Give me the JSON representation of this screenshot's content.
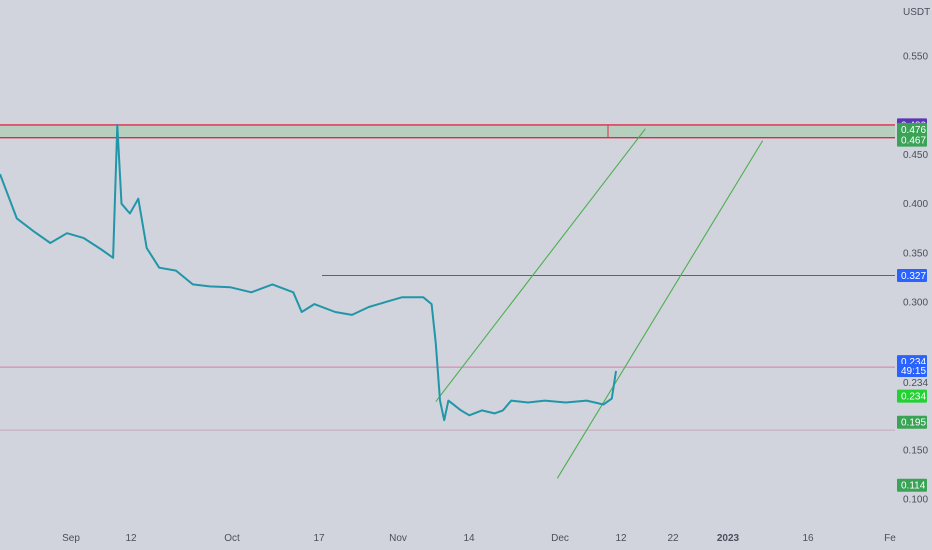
{
  "currency_label": "USDT",
  "colors": {
    "background": "#d1d4dc",
    "price_line": "#2196a8",
    "zone_fill": "#b7cfbe",
    "zone_border": "#e0294a",
    "channel": "#4caf50",
    "blue_level": "#2962ff",
    "pink_level": "#d77ab3",
    "tag_purple": "#5b34b8",
    "tag_green": "#3aa356",
    "tag_blue": "#2962ff",
    "tag_bright_green": "#22d132"
  },
  "chart_data": {
    "type": "line",
    "symbol_quote": "USDT",
    "ylim": [
      0.085,
      0.59
    ],
    "y_ticks": [
      "0.550",
      "0.450",
      "0.400",
      "0.350",
      "0.300",
      "0.150",
      "0.100"
    ],
    "x_ticks": [
      "Sep",
      "12",
      "Oct",
      "17",
      "Nov",
      "14",
      "Dec",
      "12",
      "22",
      "2023",
      "16",
      "Fe"
    ],
    "price_series": [
      {
        "x": 0,
        "y": 0.43
      },
      {
        "x": 4,
        "y": 0.385
      },
      {
        "x": 8,
        "y": 0.372
      },
      {
        "x": 12,
        "y": 0.36
      },
      {
        "x": 16,
        "y": 0.37
      },
      {
        "x": 20,
        "y": 0.365
      },
      {
        "x": 24,
        "y": 0.354
      },
      {
        "x": 27,
        "y": 0.345
      },
      {
        "x": 28,
        "y": 0.48
      },
      {
        "x": 29,
        "y": 0.4
      },
      {
        "x": 31,
        "y": 0.39
      },
      {
        "x": 33,
        "y": 0.405
      },
      {
        "x": 35,
        "y": 0.355
      },
      {
        "x": 38,
        "y": 0.335
      },
      {
        "x": 42,
        "y": 0.332
      },
      {
        "x": 46,
        "y": 0.318
      },
      {
        "x": 50,
        "y": 0.316
      },
      {
        "x": 55,
        "y": 0.315
      },
      {
        "x": 60,
        "y": 0.31
      },
      {
        "x": 65,
        "y": 0.318
      },
      {
        "x": 70,
        "y": 0.31
      },
      {
        "x": 72,
        "y": 0.29
      },
      {
        "x": 75,
        "y": 0.298
      },
      {
        "x": 80,
        "y": 0.29
      },
      {
        "x": 84,
        "y": 0.287
      },
      {
        "x": 88,
        "y": 0.295
      },
      {
        "x": 92,
        "y": 0.3
      },
      {
        "x": 96,
        "y": 0.305
      },
      {
        "x": 101,
        "y": 0.305
      },
      {
        "x": 103,
        "y": 0.298
      },
      {
        "x": 104,
        "y": 0.258
      },
      {
        "x": 105,
        "y": 0.2
      },
      {
        "x": 106,
        "y": 0.18
      },
      {
        "x": 107,
        "y": 0.2
      },
      {
        "x": 110,
        "y": 0.19
      },
      {
        "x": 112,
        "y": 0.185
      },
      {
        "x": 115,
        "y": 0.19
      },
      {
        "x": 118,
        "y": 0.187
      },
      {
        "x": 120,
        "y": 0.19
      },
      {
        "x": 122,
        "y": 0.2
      },
      {
        "x": 126,
        "y": 0.198
      },
      {
        "x": 130,
        "y": 0.2
      },
      {
        "x": 135,
        "y": 0.198
      },
      {
        "x": 140,
        "y": 0.2
      },
      {
        "x": 144,
        "y": 0.196
      },
      {
        "x": 146,
        "y": 0.202
      },
      {
        "x": 147,
        "y": 0.23
      }
    ],
    "price_x_range": [
      0,
      147
    ],
    "horizontal_levels": [
      {
        "name": "resistance-top",
        "value": 0.48,
        "color": "#e0294a"
      },
      {
        "name": "resistance-bottom",
        "value": 0.467,
        "color": "#e0294a"
      },
      {
        "name": "blue-level",
        "value": 0.327,
        "color": "#2962ff"
      },
      {
        "name": "pink-level",
        "value": 0.234,
        "color": "#d77ab3"
      },
      {
        "name": "thin-support",
        "value": 0.17,
        "color": "#c8a8b8"
      }
    ],
    "channel_lines": [
      {
        "from": {
          "x": 104,
          "y": 0.199
        },
        "to": {
          "x": 154,
          "y": 0.476
        }
      },
      {
        "from": {
          "x": 133,
          "y": 0.121
        },
        "to": {
          "x": 182,
          "y": 0.464
        }
      }
    ],
    "price_tags": [
      {
        "label": "0.480",
        "value": 0.48,
        "style": "purple"
      },
      {
        "label": "0.476",
        "value": 0.4755,
        "style": "green"
      },
      {
        "label": "0.467",
        "value": 0.4645,
        "style": "green"
      },
      {
        "label": "0.327",
        "value": 0.327,
        "style": "blue"
      },
      {
        "label": "0.234",
        "value": 0.2395,
        "style": "blue"
      },
      {
        "label": "49:15",
        "value": 0.2305,
        "style": "blue"
      },
      {
        "label": "0.234",
        "value": 0.2185,
        "style": "plain"
      },
      {
        "label": "0.234",
        "value": 0.2045,
        "style": "brightgreen"
      },
      {
        "label": "0.195",
        "value": 0.178,
        "style": "green"
      },
      {
        "label": "0.114",
        "value": 0.114,
        "style": "green"
      }
    ]
  }
}
